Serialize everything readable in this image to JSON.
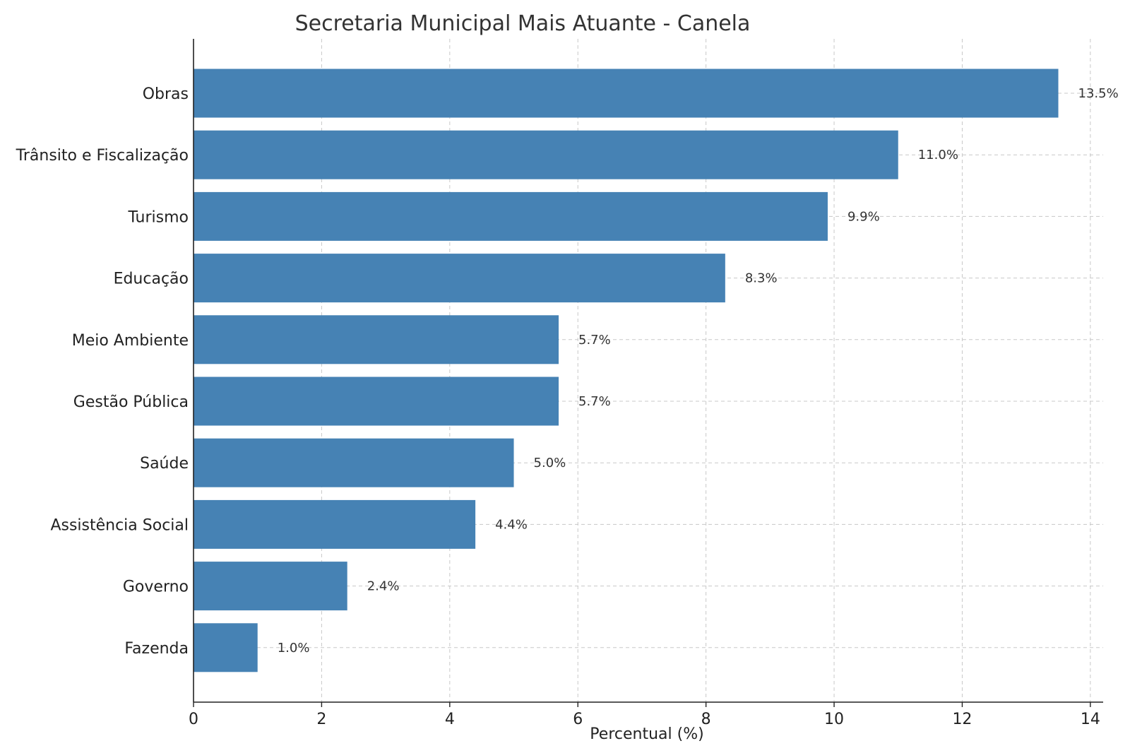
{
  "chart_data": {
    "type": "bar",
    "orientation": "horizontal",
    "title": "Secretaria Municipal Mais Atuante - Canela",
    "xlabel": "Percentual (%)",
    "ylabel": "",
    "categories": [
      "Obras",
      "Trânsito e Fiscalização",
      "Turismo",
      "Educação",
      "Meio Ambiente",
      "Gestão Pública",
      "Saúde",
      "Assistência Social",
      "Governo",
      "Fazenda"
    ],
    "values": [
      13.5,
      11.0,
      9.9,
      8.3,
      5.7,
      5.7,
      5.0,
      4.4,
      2.4,
      1.0
    ],
    "value_labels": [
      "13.5%",
      "11.0%",
      "9.9%",
      "8.3%",
      "5.7%",
      "5.7%",
      "5.0%",
      "4.4%",
      "2.4%",
      "1.0%"
    ],
    "xlim": [
      0,
      14.2
    ],
    "xticks": [
      0,
      2,
      4,
      6,
      8,
      10,
      12,
      14
    ],
    "grid": true,
    "bar_color": "#4682B4"
  }
}
